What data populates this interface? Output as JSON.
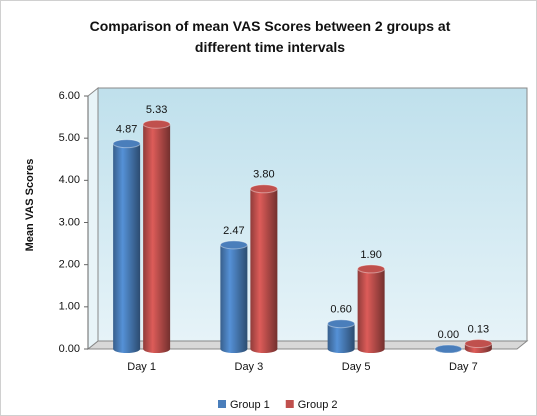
{
  "chart_data": {
    "type": "bar",
    "title": "Comparison of mean VAS Scores between 2 groups at different time intervals",
    "y_label": "Mean VAS Scores",
    "categories": [
      "Day 1",
      "Day 3",
      "Day 5",
      "Day 7"
    ],
    "series": [
      {
        "name": "Group 1",
        "color": "#4a7ebb",
        "values": [
          4.87,
          2.47,
          0.6,
          0
        ],
        "value_labels": [
          "4.87",
          "2.47",
          "0.60",
          "0.00"
        ]
      },
      {
        "name": "Group 2",
        "color": "#c0504d",
        "values": [
          5.33,
          3.8,
          1.9,
          0.13
        ],
        "value_labels": [
          "5.33",
          "3.80",
          "1.90",
          "0.13"
        ]
      }
    ],
    "ylim": [
      0,
      6
    ],
    "yticks": [
      {
        "value": 0,
        "label": "0.00"
      },
      {
        "value": 1,
        "label": "1.00"
      },
      {
        "value": 2,
        "label": "2.00"
      },
      {
        "value": 3,
        "label": "3.00"
      },
      {
        "value": 4,
        "label": "4.00"
      },
      {
        "value": 5,
        "label": "5.00"
      },
      {
        "value": 6,
        "label": "6.00"
      }
    ],
    "grid": false,
    "legend": "bottom"
  }
}
